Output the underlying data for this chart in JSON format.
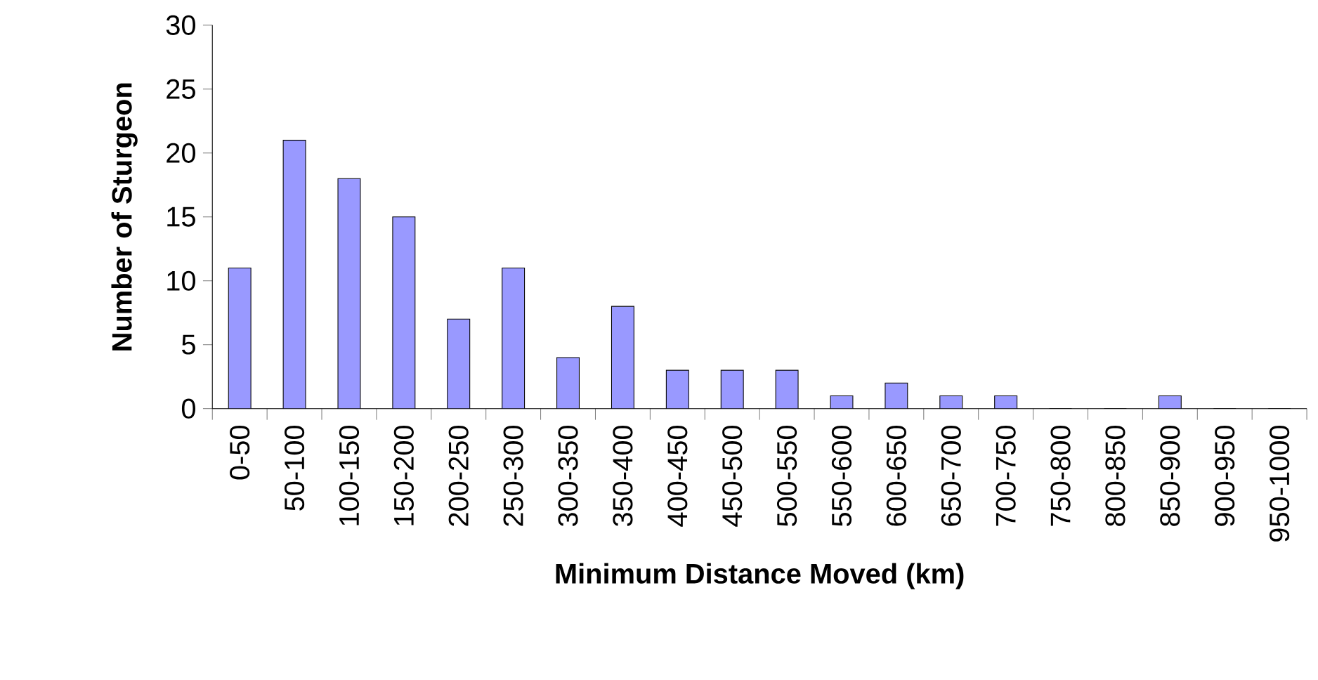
{
  "chart_data": {
    "type": "bar",
    "xlabel": "Minimum Distance Moved (km)",
    "ylabel": "Number of Sturgeon",
    "categories": [
      "0-50",
      "50-100",
      "100-150",
      "150-200",
      "200-250",
      "250-300",
      "300-350",
      "350-400",
      "400-450",
      "450-500",
      "500-550",
      "550-600",
      "600-650",
      "650-700",
      "700-750",
      "750-800",
      "800-850",
      "850-900",
      "900-950",
      "950-1000"
    ],
    "values": [
      11,
      21,
      18,
      15,
      7,
      11,
      4,
      8,
      3,
      3,
      3,
      1,
      2,
      1,
      1,
      0,
      0,
      1,
      0,
      0
    ],
    "color": "#9999ff",
    "ylim": [
      0,
      30
    ],
    "yticks": [
      0,
      5,
      10,
      15,
      20,
      25,
      30
    ]
  }
}
